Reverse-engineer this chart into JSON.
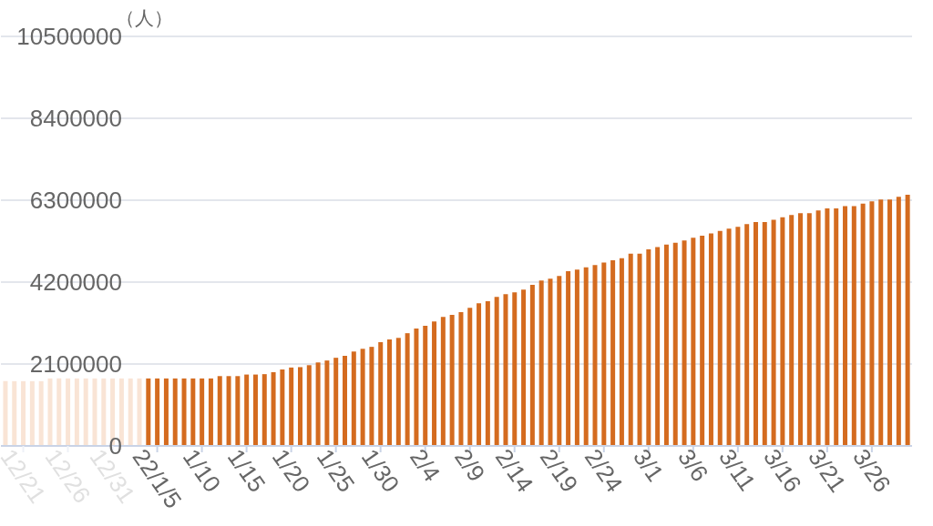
{
  "chart_data": {
    "type": "bar",
    "ylabel": "（人）",
    "categories": [
      null,
      null,
      "12/21",
      null,
      null,
      null,
      null,
      "12/26",
      null,
      null,
      null,
      null,
      "12/31",
      null,
      null,
      null,
      null,
      "22/1/5",
      null,
      null,
      null,
      null,
      "1/10",
      null,
      null,
      null,
      null,
      "1/15",
      null,
      null,
      null,
      null,
      "1/20",
      null,
      null,
      null,
      null,
      "1/25",
      null,
      null,
      null,
      null,
      "1/30",
      null,
      null,
      null,
      null,
      "2/4",
      null,
      null,
      null,
      null,
      "2/9",
      null,
      null,
      null,
      null,
      "2/14",
      null,
      null,
      null,
      null,
      "2/19",
      null,
      null,
      null,
      null,
      "2/24",
      null,
      null,
      null,
      null,
      "3/1",
      null,
      null,
      null,
      null,
      "3/6",
      null,
      null,
      null,
      null,
      "3/11",
      null,
      null,
      null,
      null,
      "3/16",
      null,
      null,
      null,
      null,
      "3/21",
      null,
      null,
      null,
      null,
      "3/26",
      null,
      null,
      null,
      null
    ],
    "values": [
      1660000,
      1660000,
      1660000,
      1660000,
      1660000,
      1730000,
      1730000,
      1730000,
      1730000,
      1730000,
      1730000,
      1730000,
      1730000,
      1730000,
      1730000,
      1730000,
      1730000,
      1730000,
      1730000,
      1730000,
      1730000,
      1730000,
      1730000,
      1730000,
      1790000,
      1790000,
      1790000,
      1830000,
      1830000,
      1840000,
      1890000,
      1960000,
      2010000,
      2020000,
      2070000,
      2140000,
      2190000,
      2260000,
      2310000,
      2420000,
      2490000,
      2540000,
      2660000,
      2730000,
      2770000,
      2890000,
      3010000,
      3080000,
      3190000,
      3310000,
      3360000,
      3430000,
      3540000,
      3660000,
      3710000,
      3820000,
      3890000,
      3940000,
      4010000,
      4130000,
      4240000,
      4290000,
      4360000,
      4480000,
      4520000,
      4580000,
      4640000,
      4700000,
      4760000,
      4810000,
      4930000,
      4930000,
      5040000,
      5100000,
      5160000,
      5210000,
      5270000,
      5340000,
      5390000,
      5450000,
      5510000,
      5570000,
      5620000,
      5690000,
      5740000,
      5740000,
      5800000,
      5860000,
      5920000,
      5970000,
      5970000,
      6040000,
      6090000,
      6090000,
      6150000,
      6150000,
      6210000,
      6270000,
      6320000,
      6320000,
      6390000,
      6440000
    ],
    "colors": [
      "#f9e4d5",
      "#f9e4d5",
      "#f9e4d5",
      "#f9e4d5",
      "#f9e4d5",
      "#f9e4d5",
      "#f9e4d5",
      "#f9e4d5",
      "#f9e4d5",
      "#f9e4d5",
      "#f9e4d5",
      "#f9e4d5",
      "#f9e4d5",
      "#f9e4d5",
      "#f9e4d5",
      "#f9e4d5",
      "#d46b1f",
      "#d46b1f",
      "#d46b1f",
      "#d46b1f",
      "#d46b1f",
      "#d46b1f",
      "#d46b1f",
      "#d46b1f",
      "#d46b1f",
      "#d46b1f",
      "#d46b1f",
      "#d46b1f",
      "#d46b1f",
      "#d46b1f",
      "#d46b1f",
      "#d46b1f",
      "#d46b1f",
      "#d46b1f",
      "#d46b1f",
      "#d46b1f",
      "#d46b1f",
      "#d46b1f",
      "#d46b1f",
      "#d46b1f",
      "#d46b1f",
      "#d46b1f",
      "#d46b1f",
      "#d46b1f",
      "#d46b1f",
      "#d46b1f",
      "#d46b1f",
      "#d46b1f",
      "#d46b1f",
      "#d46b1f",
      "#d46b1f",
      "#d46b1f",
      "#d46b1f",
      "#d46b1f",
      "#d46b1f",
      "#d46b1f",
      "#d46b1f",
      "#d46b1f",
      "#d46b1f",
      "#d46b1f",
      "#d46b1f",
      "#d46b1f",
      "#d46b1f",
      "#d46b1f",
      "#d46b1f",
      "#d46b1f",
      "#d46b1f",
      "#d46b1f",
      "#d46b1f",
      "#d46b1f",
      "#d46b1f",
      "#d46b1f",
      "#d46b1f",
      "#d46b1f",
      "#d46b1f",
      "#d46b1f",
      "#d46b1f",
      "#d46b1f",
      "#d46b1f",
      "#d46b1f",
      "#d46b1f",
      "#d46b1f",
      "#d46b1f",
      "#d46b1f",
      "#d46b1f",
      "#d46b1f",
      "#d46b1f",
      "#d46b1f",
      "#d46b1f",
      "#d46b1f",
      "#d46b1f",
      "#d46b1f",
      "#d46b1f",
      "#d46b1f",
      "#d46b1f",
      "#d46b1f",
      "#d46b1f",
      "#d46b1f",
      "#d46b1f",
      "#d46b1f",
      "#d46b1f",
      "#d46b1f"
    ],
    "ylim": [
      0,
      10500000
    ],
    "yticks": [
      0,
      2100000,
      4200000,
      6300000,
      8400000,
      10500000
    ],
    "grid": "y"
  }
}
